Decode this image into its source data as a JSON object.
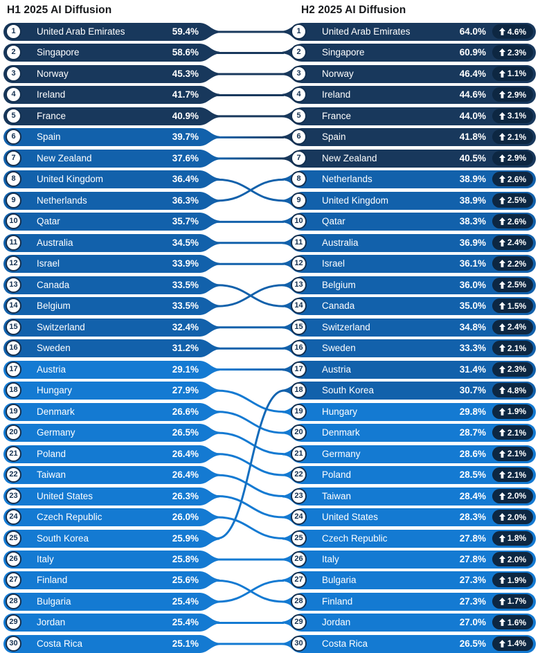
{
  "colors": {
    "band_high": "#18385C",
    "band_mid": "#1261AB",
    "band_low": "#147AD2",
    "delta_badge_bg": "#0D2742",
    "rank_circle_bg": "#FFFFFF",
    "rank_circle_ring": "#143050",
    "title_text": "#17191C",
    "row_text": "#FFFFFF",
    "link_stroke_width": 3
  },
  "chart_data": {
    "type": "table",
    "title_left": "H1 2025 AI Diffusion",
    "title_right": "H2 2025 AI Diffusion",
    "columns_left": [
      "rank",
      "country",
      "value"
    ],
    "columns_right": [
      "rank",
      "country",
      "value",
      "change_vs_h1"
    ],
    "delta_direction": "up",
    "value_bands": {
      "high_min": 40,
      "mid_min": 30
    },
    "h1": [
      {
        "rank": 1,
        "country": "United Arab Emirates",
        "value": "59.4%"
      },
      {
        "rank": 2,
        "country": "Singapore",
        "value": "58.6%"
      },
      {
        "rank": 3,
        "country": "Norway",
        "value": "45.3%"
      },
      {
        "rank": 4,
        "country": "Ireland",
        "value": "41.7%"
      },
      {
        "rank": 5,
        "country": "France",
        "value": "40.9%"
      },
      {
        "rank": 6,
        "country": "Spain",
        "value": "39.7%"
      },
      {
        "rank": 7,
        "country": "New Zealand",
        "value": "37.6%"
      },
      {
        "rank": 8,
        "country": "United Kingdom",
        "value": "36.4%"
      },
      {
        "rank": 9,
        "country": "Netherlands",
        "value": "36.3%"
      },
      {
        "rank": 10,
        "country": "Qatar",
        "value": "35.7%"
      },
      {
        "rank": 11,
        "country": "Australia",
        "value": "34.5%"
      },
      {
        "rank": 12,
        "country": "Israel",
        "value": "33.9%"
      },
      {
        "rank": 13,
        "country": "Canada",
        "value": "33.5%"
      },
      {
        "rank": 14,
        "country": "Belgium",
        "value": "33.5%"
      },
      {
        "rank": 15,
        "country": "Switzerland",
        "value": "32.4%"
      },
      {
        "rank": 16,
        "country": "Sweden",
        "value": "31.2%"
      },
      {
        "rank": 17,
        "country": "Austria",
        "value": "29.1%"
      },
      {
        "rank": 18,
        "country": "Hungary",
        "value": "27.9%"
      },
      {
        "rank": 19,
        "country": "Denmark",
        "value": "26.6%"
      },
      {
        "rank": 20,
        "country": "Germany",
        "value": "26.5%"
      },
      {
        "rank": 21,
        "country": "Poland",
        "value": "26.4%"
      },
      {
        "rank": 22,
        "country": "Taiwan",
        "value": "26.4%"
      },
      {
        "rank": 23,
        "country": "United States",
        "value": "26.3%"
      },
      {
        "rank": 24,
        "country": "Czech Republic",
        "value": "26.0%"
      },
      {
        "rank": 25,
        "country": "South Korea",
        "value": "25.9%"
      },
      {
        "rank": 26,
        "country": "Italy",
        "value": "25.8%"
      },
      {
        "rank": 27,
        "country": "Finland",
        "value": "25.6%"
      },
      {
        "rank": 28,
        "country": "Bulgaria",
        "value": "25.4%"
      },
      {
        "rank": 29,
        "country": "Jordan",
        "value": "25.4%"
      },
      {
        "rank": 30,
        "country": "Costa Rica",
        "value": "25.1%"
      }
    ],
    "h2": [
      {
        "rank": 1,
        "country": "United Arab Emirates",
        "value": "64.0%",
        "delta": "4.6%"
      },
      {
        "rank": 2,
        "country": "Singapore",
        "value": "60.9%",
        "delta": "2.3%"
      },
      {
        "rank": 3,
        "country": "Norway",
        "value": "46.4%",
        "delta": "1.1%"
      },
      {
        "rank": 4,
        "country": "Ireland",
        "value": "44.6%",
        "delta": "2.9%"
      },
      {
        "rank": 5,
        "country": "France",
        "value": "44.0%",
        "delta": "3.1%"
      },
      {
        "rank": 6,
        "country": "Spain",
        "value": "41.8%",
        "delta": "2.1%"
      },
      {
        "rank": 7,
        "country": "New Zealand",
        "value": "40.5%",
        "delta": "2.9%"
      },
      {
        "rank": 8,
        "country": "Netherlands",
        "value": "38.9%",
        "delta": "2.6%"
      },
      {
        "rank": 9,
        "country": "United Kingdom",
        "value": "38.9%",
        "delta": "2.5%"
      },
      {
        "rank": 10,
        "country": "Qatar",
        "value": "38.3%",
        "delta": "2.6%"
      },
      {
        "rank": 11,
        "country": "Australia",
        "value": "36.9%",
        "delta": "2.4%"
      },
      {
        "rank": 12,
        "country": "Israel",
        "value": "36.1%",
        "delta": "2.2%"
      },
      {
        "rank": 13,
        "country": "Belgium",
        "value": "36.0%",
        "delta": "2.5%"
      },
      {
        "rank": 14,
        "country": "Canada",
        "value": "35.0%",
        "delta": "1.5%"
      },
      {
        "rank": 15,
        "country": "Switzerland",
        "value": "34.8%",
        "delta": "2.4%"
      },
      {
        "rank": 16,
        "country": "Sweden",
        "value": "33.3%",
        "delta": "2.1%"
      },
      {
        "rank": 17,
        "country": "Austria",
        "value": "31.4%",
        "delta": "2.3%"
      },
      {
        "rank": 18,
        "country": "South Korea",
        "value": "30.7%",
        "delta": "4.8%"
      },
      {
        "rank": 19,
        "country": "Hungary",
        "value": "29.8%",
        "delta": "1.9%"
      },
      {
        "rank": 20,
        "country": "Denmark",
        "value": "28.7%",
        "delta": "2.1%"
      },
      {
        "rank": 21,
        "country": "Germany",
        "value": "28.6%",
        "delta": "2.1%"
      },
      {
        "rank": 22,
        "country": "Poland",
        "value": "28.5%",
        "delta": "2.1%"
      },
      {
        "rank": 23,
        "country": "Taiwan",
        "value": "28.4%",
        "delta": "2.0%"
      },
      {
        "rank": 24,
        "country": "United States",
        "value": "28.3%",
        "delta": "2.0%"
      },
      {
        "rank": 25,
        "country": "Czech Republic",
        "value": "27.8%",
        "delta": "1.8%"
      },
      {
        "rank": 26,
        "country": "Italy",
        "value": "27.8%",
        "delta": "2.0%"
      },
      {
        "rank": 27,
        "country": "Bulgaria",
        "value": "27.3%",
        "delta": "1.9%"
      },
      {
        "rank": 28,
        "country": "Finland",
        "value": "27.3%",
        "delta": "1.7%"
      },
      {
        "rank": 29,
        "country": "Jordan",
        "value": "27.0%",
        "delta": "1.6%"
      },
      {
        "rank": 30,
        "country": "Costa Rica",
        "value": "26.5%",
        "delta": "1.4%"
      }
    ]
  }
}
